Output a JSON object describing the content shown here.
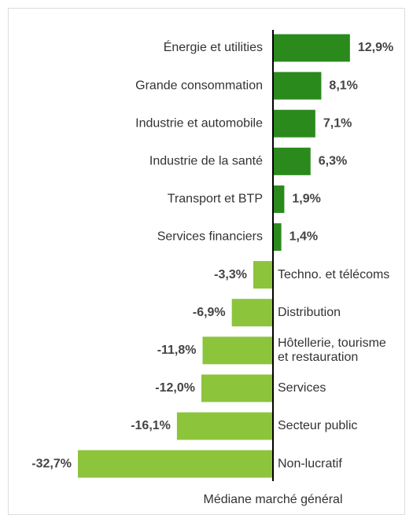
{
  "chart_data": {
    "type": "bar",
    "orientation": "horizontal",
    "categories": [
      "Énergie et utilities",
      "Grande consommation",
      "Industrie et automobile",
      "Industrie de la santé",
      "Transport et BTP",
      "Services financiers",
      "Techno. et télécoms",
      "Distribution",
      "Hôtellerie, tourisme et restauration",
      "Services",
      "Secteur public",
      "Non-lucratif"
    ],
    "values": [
      12.9,
      8.1,
      7.1,
      6.3,
      1.9,
      1.4,
      -3.3,
      -6.9,
      -11.8,
      -12.0,
      -16.1,
      -32.7
    ],
    "value_labels": [
      "12,9%",
      "8,1%",
      "7,1%",
      "6,3%",
      "1,9%",
      "1,4%",
      "-3,3%",
      "-6,9%",
      "-11,8%",
      "-12,0%",
      "-16,1%",
      "-32,7%"
    ],
    "positive_color": "#2a8a1c",
    "negative_color": "#8cc43c",
    "axis_label": "Médiane marché général"
  }
}
